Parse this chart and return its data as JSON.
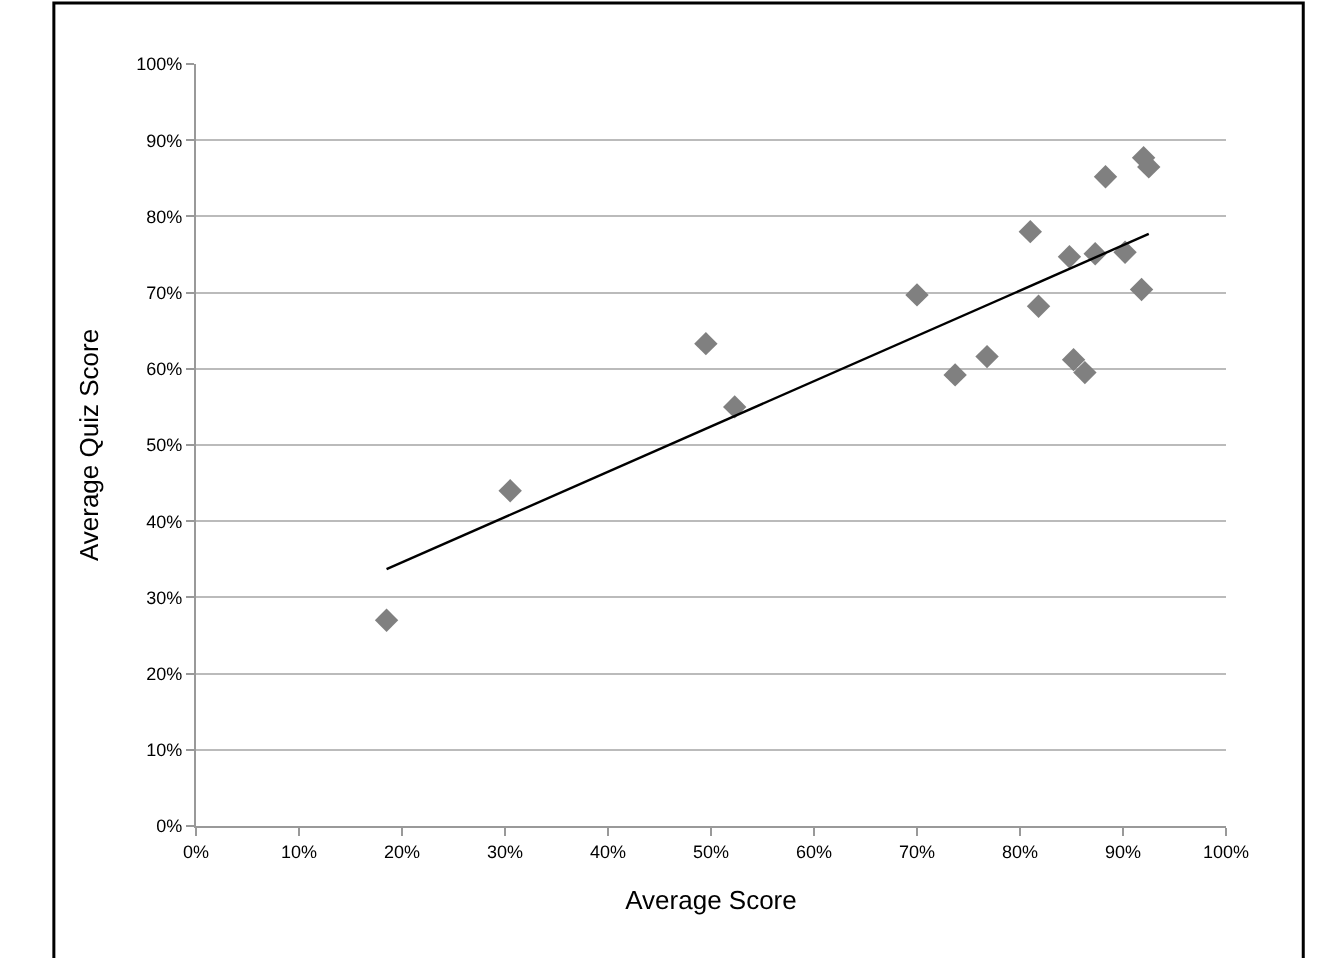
{
  "chart_data": {
    "type": "scatter",
    "xlabel": "Average Score",
    "ylabel": "Average Quiz Score",
    "series": [
      {
        "color": "#808080",
        "marker": "diamond",
        "x": [
          18.5,
          30.5,
          49.5,
          52.3,
          70,
          73.7,
          76.8,
          81,
          81.8,
          84.8,
          85.2,
          86.3,
          87.3,
          88.3,
          90.2,
          91.8,
          92,
          92.5
        ],
        "values": [
          27,
          44,
          63.3,
          55,
          69.7,
          59.2,
          61.6,
          78,
          68.2,
          74.7,
          61.2,
          59.5,
          75.1,
          85.2,
          75.3,
          70.4,
          87.7,
          86.5
        ]
      },
      {
        "type": "line",
        "color": "#000000",
        "marker": "none",
        "line_style": "solid",
        "x": [
          18.5,
          92.5
        ],
        "values": [
          33.7,
          77.7
        ]
      }
    ],
    "xlim": [
      0,
      100
    ],
    "ylim": [
      0,
      100
    ],
    "xticks": [
      {
        "value": 0,
        "label": "0%"
      },
      {
        "value": 10,
        "label": "10%"
      },
      {
        "value": 20,
        "label": "20%"
      },
      {
        "value": 30,
        "label": "30%"
      },
      {
        "value": 40,
        "label": "40%"
      },
      {
        "value": 50,
        "label": "50%"
      },
      {
        "value": 60,
        "label": "60%"
      },
      {
        "value": 70,
        "label": "70%"
      },
      {
        "value": 80,
        "label": "80%"
      },
      {
        "value": 90,
        "label": "90%"
      },
      {
        "value": 100,
        "label": "100%"
      }
    ],
    "yticks": [
      {
        "value": 0,
        "label": "0%"
      },
      {
        "value": 10,
        "label": "10%"
      },
      {
        "value": 20,
        "label": "20%"
      },
      {
        "value": 30,
        "label": "30%"
      },
      {
        "value": 40,
        "label": "40%"
      },
      {
        "value": 50,
        "label": "50%"
      },
      {
        "value": 60,
        "label": "60%"
      },
      {
        "value": 70,
        "label": "70%"
      },
      {
        "value": 80,
        "label": "80%"
      },
      {
        "value": 90,
        "label": "90%"
      },
      {
        "value": 100,
        "label": "100%"
      }
    ],
    "grid": "y"
  }
}
